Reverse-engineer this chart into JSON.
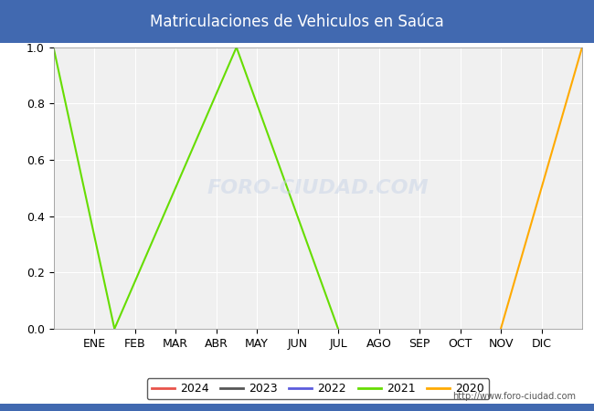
{
  "title": "Matriculaciones de Vehiculos en Saúca",
  "title_bg_color": "#4169b0",
  "title_text_color": "#ffffff",
  "plot_bg_color": "#f0f0f0",
  "outer_bg_color": "#ffffff",
  "months": [
    "ENE",
    "FEB",
    "MAR",
    "ABR",
    "MAY",
    "JUN",
    "JUL",
    "AGO",
    "SEP",
    "OCT",
    "NOV",
    "DIC"
  ],
  "month_positions": [
    1,
    2,
    3,
    4,
    5,
    6,
    7,
    8,
    9,
    10,
    11,
    12
  ],
  "xlim": [
    0,
    13
  ],
  "ylim": [
    0.0,
    1.0
  ],
  "yticks": [
    0.0,
    0.2,
    0.4,
    0.6,
    0.8,
    1.0
  ],
  "grid_color": "#ffffff",
  "series": {
    "2024": {
      "color": "#e8534a",
      "x": [],
      "y": []
    },
    "2023": {
      "color": "#555555",
      "x": [],
      "y": []
    },
    "2022": {
      "color": "#5b5bdd",
      "x": [],
      "y": []
    },
    "2021": {
      "color": "#66dd00",
      "x": [
        0,
        1.5,
        4.5,
        7
      ],
      "y": [
        1.0,
        0.0,
        1.0,
        0.0
      ]
    },
    "2020": {
      "color": "#ffaa00",
      "x": [
        11,
        13
      ],
      "y": [
        0.0,
        1.0
      ]
    }
  },
  "legend_order": [
    "2024",
    "2023",
    "2022",
    "2021",
    "2020"
  ],
  "watermark": "FORO-CIUDAD.COM",
  "watermark_url": "http://www.foro-ciudad.com",
  "xlabel": "",
  "ylabel": ""
}
